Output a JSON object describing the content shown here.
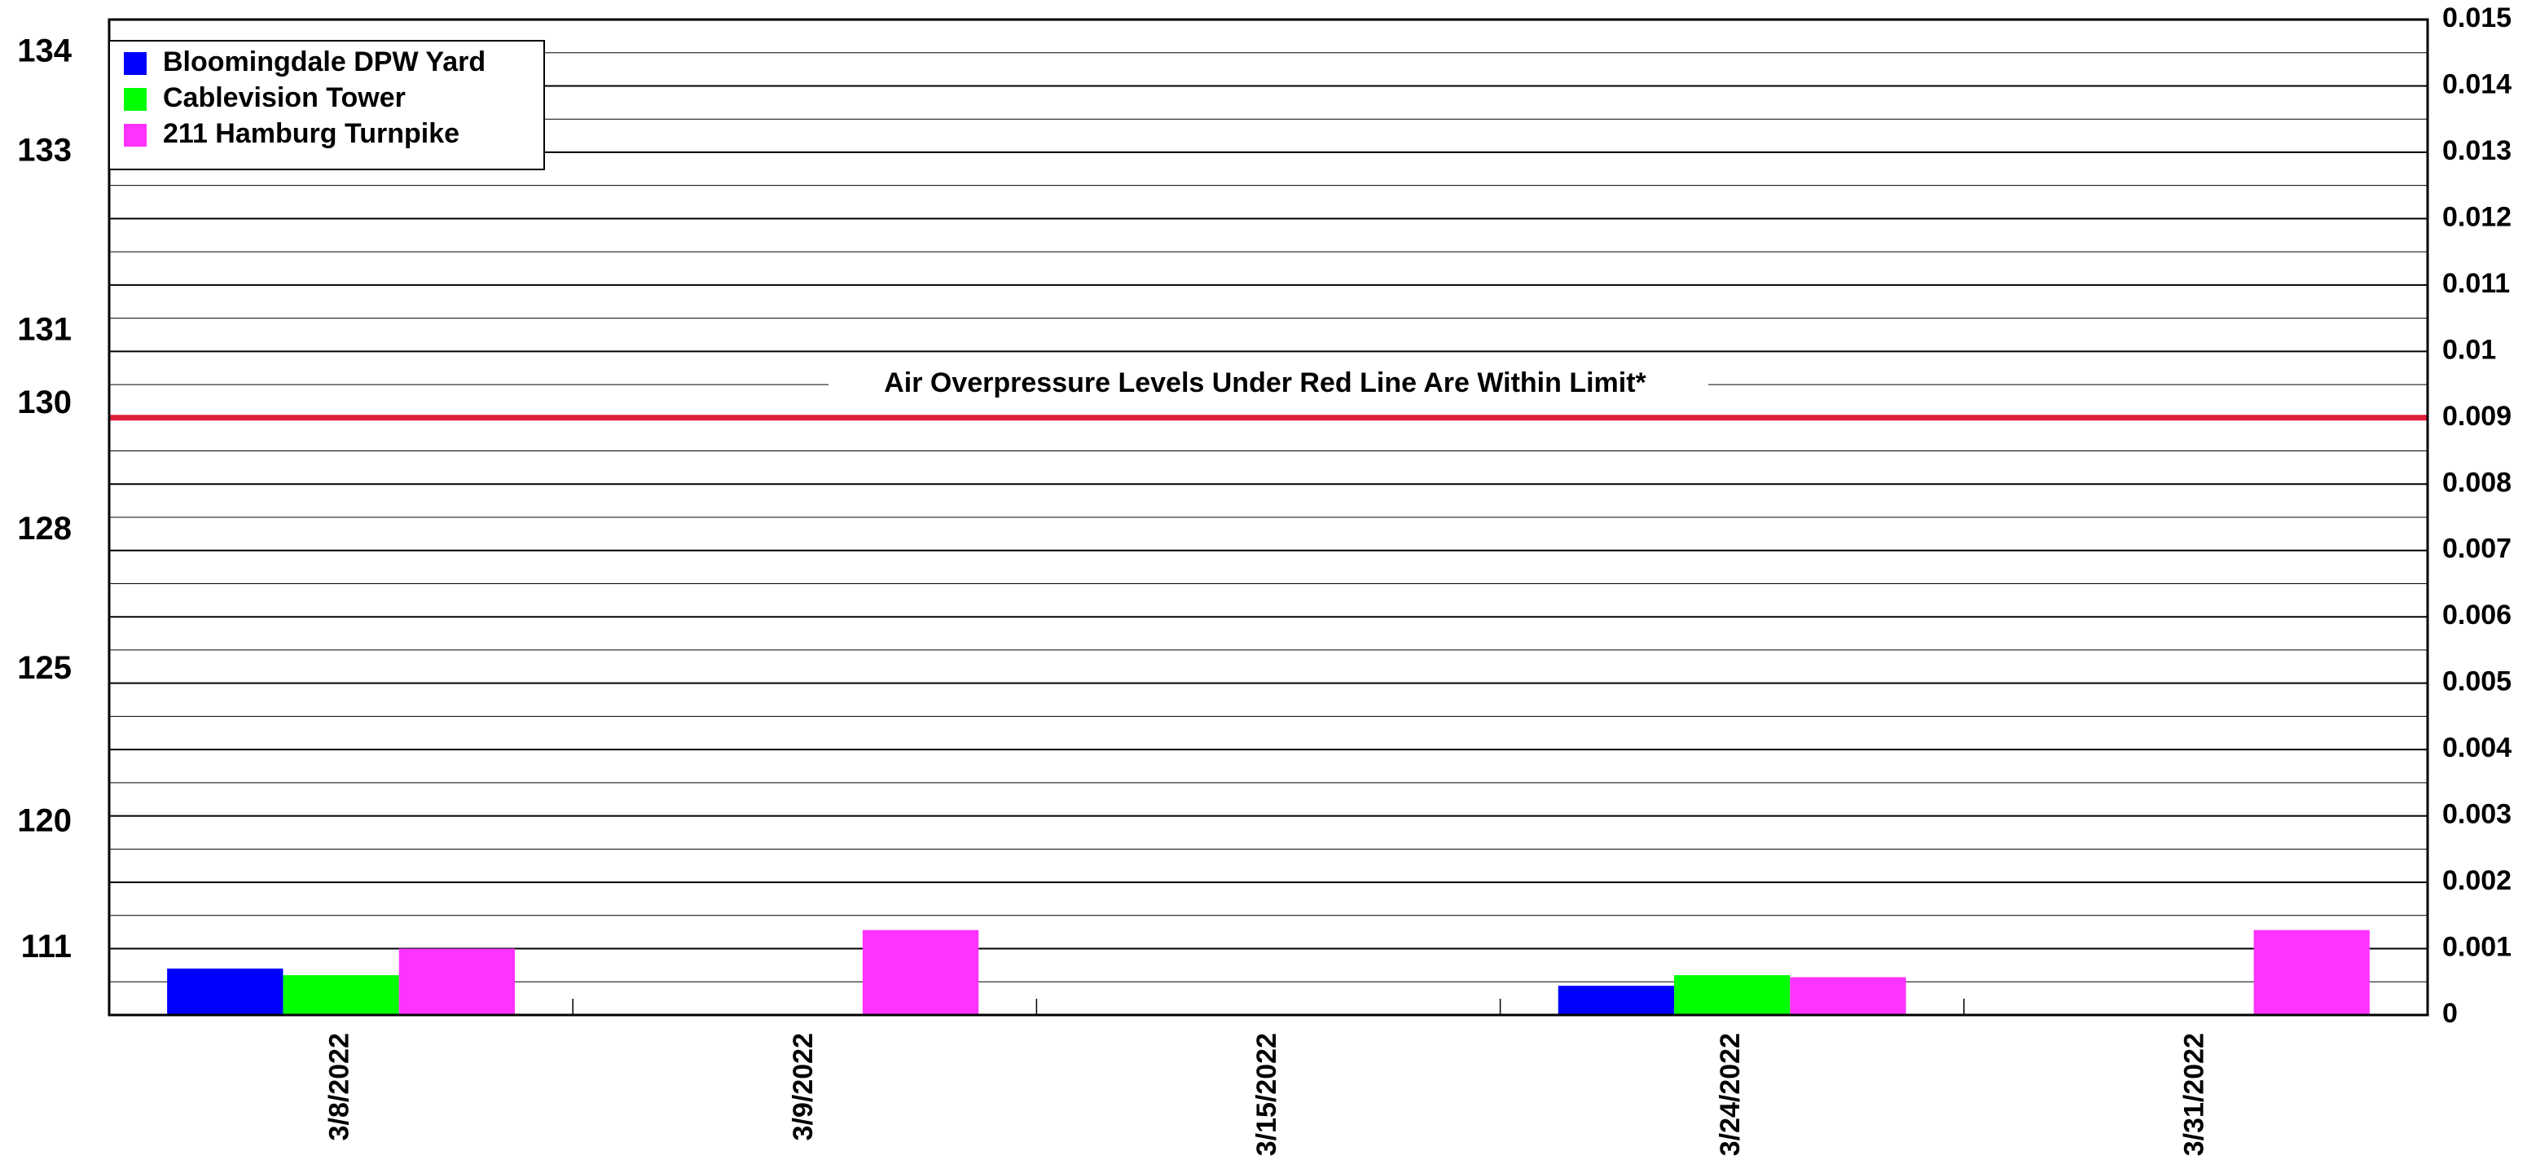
{
  "chart_data": {
    "type": "bar",
    "categories": [
      "3/8/2022",
      "3/9/2022",
      "3/15/2022",
      "3/24/2022",
      "3/31/2022"
    ],
    "series": [
      {
        "name": "Bloomingdale DPW Yard",
        "color": "#0000ff",
        "values": [
          0.0007,
          null,
          null,
          0.00044,
          null
        ]
      },
      {
        "name": "Cablevision Tower",
        "color": "#00ff00",
        "values": [
          0.0006,
          null,
          null,
          0.0006,
          null
        ]
      },
      {
        "name": "211 Hamburg Turnpike",
        "color": "#ff33ff",
        "values": [
          0.001,
          0.00128,
          null,
          0.00057,
          0.00128
        ]
      }
    ],
    "ylim": [
      0,
      0.015
    ],
    "yticks": [
      0,
      0.001,
      0.002,
      0.003,
      0.004,
      0.005,
      0.006,
      0.007,
      0.008,
      0.009,
      0.01,
      0.011,
      0.012,
      0.013,
      0.014,
      0.015
    ],
    "left_ticks": [
      {
        "value": 0.0145,
        "label": "134"
      },
      {
        "value": 0.013,
        "label": "133"
      },
      {
        "value": 0.0103,
        "label": "131"
      },
      {
        "value": 0.0092,
        "label": "130"
      },
      {
        "value": 0.0073,
        "label": "128"
      },
      {
        "value": 0.0052,
        "label": "125"
      },
      {
        "value": 0.0029,
        "label": "120"
      },
      {
        "value": 0.001,
        "label": "111"
      }
    ],
    "limit": 0.009,
    "limit_color": "#e0203c",
    "limit_label": "Air Overpressure Levels Under Red Line Are Within Limit*",
    "grid": true,
    "legend": "upper left"
  }
}
